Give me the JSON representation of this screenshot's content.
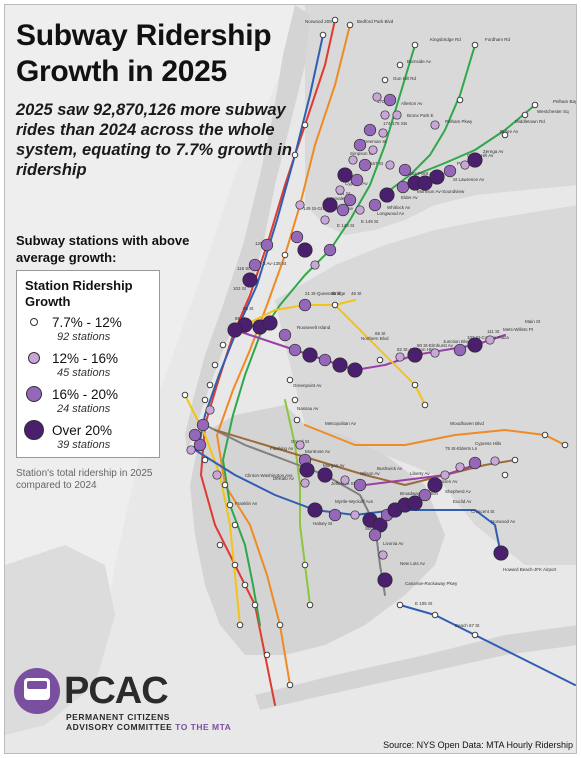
{
  "title_line1": "Subway Ridership",
  "title_line2": "Growth in 2025",
  "subtitle": "2025 saw 92,870,126 more subway rides than 2024 across the whole system, equating to 7.7% growth in ridership",
  "legend": {
    "intro": "Subway stations with above average growth:",
    "title_line1": "Station Ridership",
    "title_line2": "Growth",
    "items": [
      {
        "range": "7.7% - 12%",
        "count": "92 stations",
        "color": "#ffffff"
      },
      {
        "range": "12% - 16%",
        "count": "45 stations",
        "color": "#c9a6d8"
      },
      {
        "range": "16% - 20%",
        "count": "24 stations",
        "color": "#9567b8"
      },
      {
        "range": "Over 20%",
        "count": "39 stations",
        "color": "#4a1f6e"
      }
    ],
    "caption": "Station's total ridership in 2025 compared to 2024"
  },
  "logo": {
    "word": "PCAC",
    "line1": "PERMANENT CITIZENS",
    "line2_main": "ADVISORY COMMITTEE ",
    "line2_accent": "TO THE MTA"
  },
  "source": "Source: NYS Open Data: MTA Hourly Ridership",
  "station_labels": [
    "Norwood 205 St",
    "Bedford Park Blvd",
    "Kingsbridge Rd",
    "Fordham Rd",
    "Burnside Av",
    "Gun Hill Rd",
    "Pelham Pkwy",
    "Allerton Av",
    "Bronx Park E",
    "Pelham Bay Park",
    "Westchester Sq",
    "Middletown Rd",
    "Buhre Av",
    "Zerega Av",
    "Castle Hill Av",
    "Parkchester",
    "St Lawrence Av",
    "Morrison Av-Soundview",
    "Elder Av",
    "Whitlock Av",
    "Hunts Point Av",
    "Longwood Av",
    "E 149 St",
    "E 143 St",
    "Cypress Av",
    "Intervale Av",
    "Simpson St",
    "Freeman St",
    "174-175 Sts",
    "167 St",
    "170 St",
    "161 St",
    "149 St-Grand Concourse",
    "3 Av-138 St",
    "125 St",
    "116 St",
    "103 St",
    "96 St",
    "86 St",
    "Roosevelt Island",
    "21 St-Queensbridge",
    "36 St",
    "46 St",
    "Northern Blvd",
    "65 St",
    "82 St-Jackson Hts",
    "90 St-Elmhurst Av",
    "Junction Blvd",
    "103 St-Corona Plaza",
    "111 St",
    "Mets-Willets Pt",
    "Main St",
    "Woodhaven Blvd",
    "75 St-Elderts Ln",
    "Cypress Hills",
    "Greenpoint Av",
    "Nassau Av",
    "Metropolitan Av",
    "Grand St",
    "Montrose Av",
    "Morgan Av",
    "Jefferson St",
    "DeKalb Av",
    "Myrtle-Wyckoff Avs",
    "Halsey St",
    "Wilson Av",
    "Bushwick Av",
    "Broadway Junction",
    "Liberty Av",
    "Van Siclen Av",
    "Shepherd Av",
    "Euclid Av",
    "Crescent St",
    "Norwood Av",
    "Sutter Av",
    "Livonia Av",
    "New Lots Av",
    "Canarsie-Rockaway Pkwy",
    "E 105 St",
    "Beach 67 St",
    "Howard Beach-JFK Airport",
    "Flushing Av",
    "Clinton-Washington Avs",
    "Franklin Av"
  ]
}
